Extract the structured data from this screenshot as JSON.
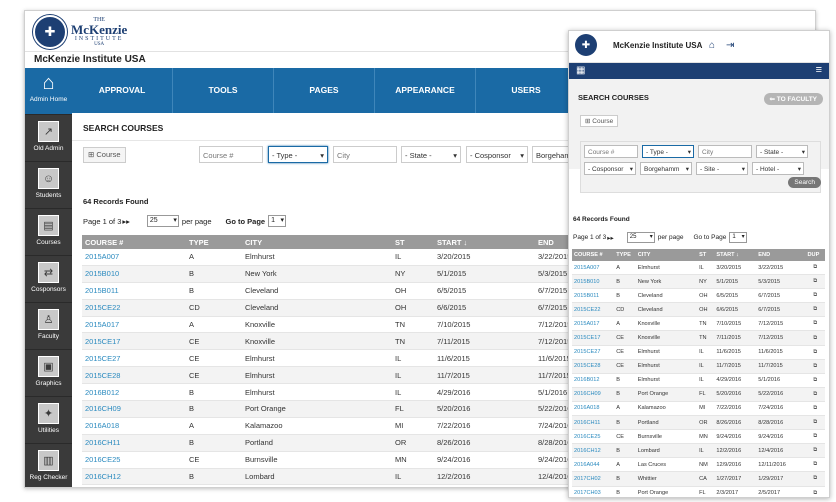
{
  "brand": {
    "l1": "THE",
    "l2": "McKenzie",
    "l3": "INSTITUTE",
    "l4": "USA"
  },
  "app_title": "McKenzie Institute USA",
  "sidebar": {
    "items": [
      {
        "label": "Admin Home",
        "icon": "home-icon",
        "glyph": "⌂"
      },
      {
        "label": "Old Admin",
        "icon": "external-link-icon",
        "glyph": "↗"
      },
      {
        "label": "Students",
        "icon": "student-icon",
        "glyph": "☺"
      },
      {
        "label": "Courses",
        "icon": "book-icon",
        "glyph": "▤"
      },
      {
        "label": "Cosponsors",
        "icon": "handshake-icon",
        "glyph": "⇄"
      },
      {
        "label": "Faculty",
        "icon": "faculty-icon",
        "glyph": "♙"
      },
      {
        "label": "Graphics",
        "icon": "graphics-icon",
        "glyph": "▣"
      },
      {
        "label": "Utilities",
        "icon": "gear-icon",
        "glyph": "✦"
      },
      {
        "label": "Reg Checker",
        "icon": "reg-checker-icon",
        "glyph": "▥"
      }
    ]
  },
  "topnav": [
    "APPROVAL",
    "TOOLS",
    "PAGES",
    "APPEARANCE",
    "USERS"
  ],
  "search": {
    "title": "SEARCH COURSES",
    "add_course": "Course",
    "course_ph": "Course #",
    "type": "- Type -",
    "city_ph": "City",
    "state": "- State -",
    "cosponsor": "- Cosponsor",
    "facility": "Borgeham",
    "facility_full": "Borgehamm",
    "site": "- Site -",
    "hotel": "- Hotel -",
    "search_btn": "Search",
    "to_faculty": "TO FACULTY"
  },
  "records": "64 Records Found",
  "pager": {
    "prefix": "Page 1 of 3",
    "per_page_value": "25",
    "per_page_label": "per page",
    "goto_label": "Go to Page",
    "goto_value": "1"
  },
  "columns": {
    "course": "COURSE #",
    "type": "TYPE",
    "city": "CITY",
    "st": "ST",
    "start": "START",
    "end": "END",
    "dup": "DUP"
  },
  "rows": [
    [
      "2015A007",
      "A",
      "Elmhurst",
      "IL",
      "3/20/2015",
      "3/22/2015"
    ],
    [
      "2015B010",
      "B",
      "New York",
      "NY",
      "5/1/2015",
      "5/3/2015"
    ],
    [
      "2015B011",
      "B",
      "Cleveland",
      "OH",
      "6/5/2015",
      "6/7/2015"
    ],
    [
      "2015CE22",
      "CD",
      "Cleveland",
      "OH",
      "6/6/2015",
      "6/7/2015"
    ],
    [
      "2015A017",
      "A",
      "Knoxville",
      "TN",
      "7/10/2015",
      "7/12/2015"
    ],
    [
      "2015CE17",
      "CE",
      "Knoxville",
      "TN",
      "7/11/2015",
      "7/12/2015"
    ],
    [
      "2015CE27",
      "CE",
      "Elmhurst",
      "IL",
      "11/6/2015",
      "11/6/2015"
    ],
    [
      "2015CE28",
      "CE",
      "Elmhurst",
      "IL",
      "11/7/2015",
      "11/7/2015"
    ],
    [
      "2016B012",
      "B",
      "Elmhurst",
      "IL",
      "4/29/2016",
      "5/1/2016"
    ],
    [
      "2016CH09",
      "B",
      "Port Orange",
      "FL",
      "5/20/2016",
      "5/22/2016"
    ],
    [
      "2016A018",
      "A",
      "Kalamazoo",
      "MI",
      "7/22/2016",
      "7/24/2016"
    ],
    [
      "2016CH11",
      "B",
      "Portland",
      "OR",
      "8/26/2016",
      "8/28/2016"
    ],
    [
      "2016CE25",
      "CE",
      "Burnsville",
      "MN",
      "9/24/2016",
      "9/24/2016"
    ],
    [
      "2016CH12",
      "B",
      "Lombard",
      "IL",
      "12/2/2016",
      "12/4/2016"
    ]
  ],
  "mobile_extra_rows": [
    [
      "2016A044",
      "A",
      "Las Cruces",
      "NM",
      "12/9/2016",
      "12/11/2016"
    ],
    [
      "2017CH02",
      "B",
      "Whittier",
      "CA",
      "1/27/2017",
      "1/29/2017"
    ],
    [
      "2017CH03",
      "B",
      "Port Orange",
      "FL",
      "2/3/2017",
      "2/5/2017"
    ]
  ],
  "desktop_partial_row": [
    "2016A044",
    "A",
    "Las Cruces",
    "NM",
    "12/9/2016",
    "12/11/2016"
  ]
}
